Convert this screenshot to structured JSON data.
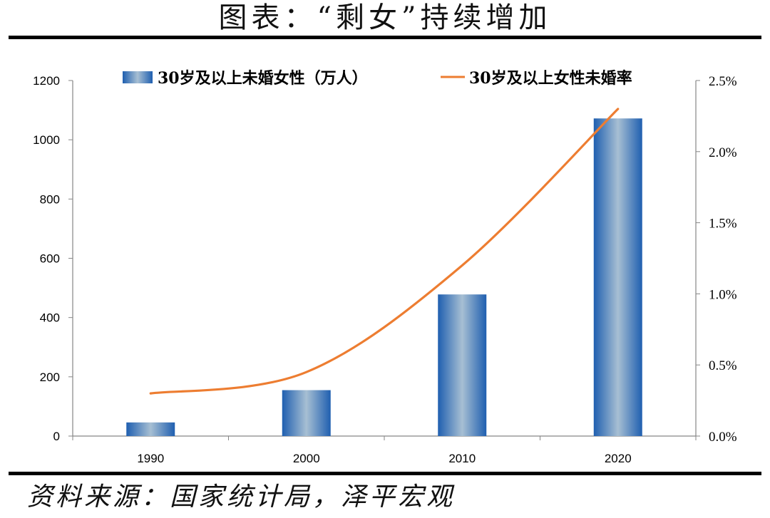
{
  "title": "图表：“剩女”持续增加",
  "source": "资料来源：国家统计局，泽平宏观",
  "colors": {
    "bar_dark": "#1f5fb0",
    "bar_light": "#a7bfd3",
    "line": "#ed7d31",
    "axis": "#868686"
  },
  "chart_data": {
    "type": "bar",
    "categories": [
      "1990",
      "2000",
      "2010",
      "2020"
    ],
    "series": [
      {
        "name": "30岁及以上未婚女性（万人）",
        "type": "bar",
        "axis": "left",
        "values": [
          46,
          155,
          478,
          1072
        ]
      },
      {
        "name": "30岁及以上女性未婚率",
        "type": "line",
        "axis": "right",
        "values": [
          0.3,
          0.45,
          1.2,
          2.3
        ]
      }
    ],
    "y_left": {
      "min": 0,
      "max": 1200,
      "ticks": [
        "0",
        "200",
        "400",
        "600",
        "800",
        "1000",
        "1200"
      ]
    },
    "y_right": {
      "min": 0,
      "max": 2.5,
      "ticks": [
        "0.0%",
        "0.5%",
        "1.0%",
        "1.5%",
        "2.0%",
        "2.5%"
      ]
    },
    "grid": false,
    "legend_position": "top"
  }
}
